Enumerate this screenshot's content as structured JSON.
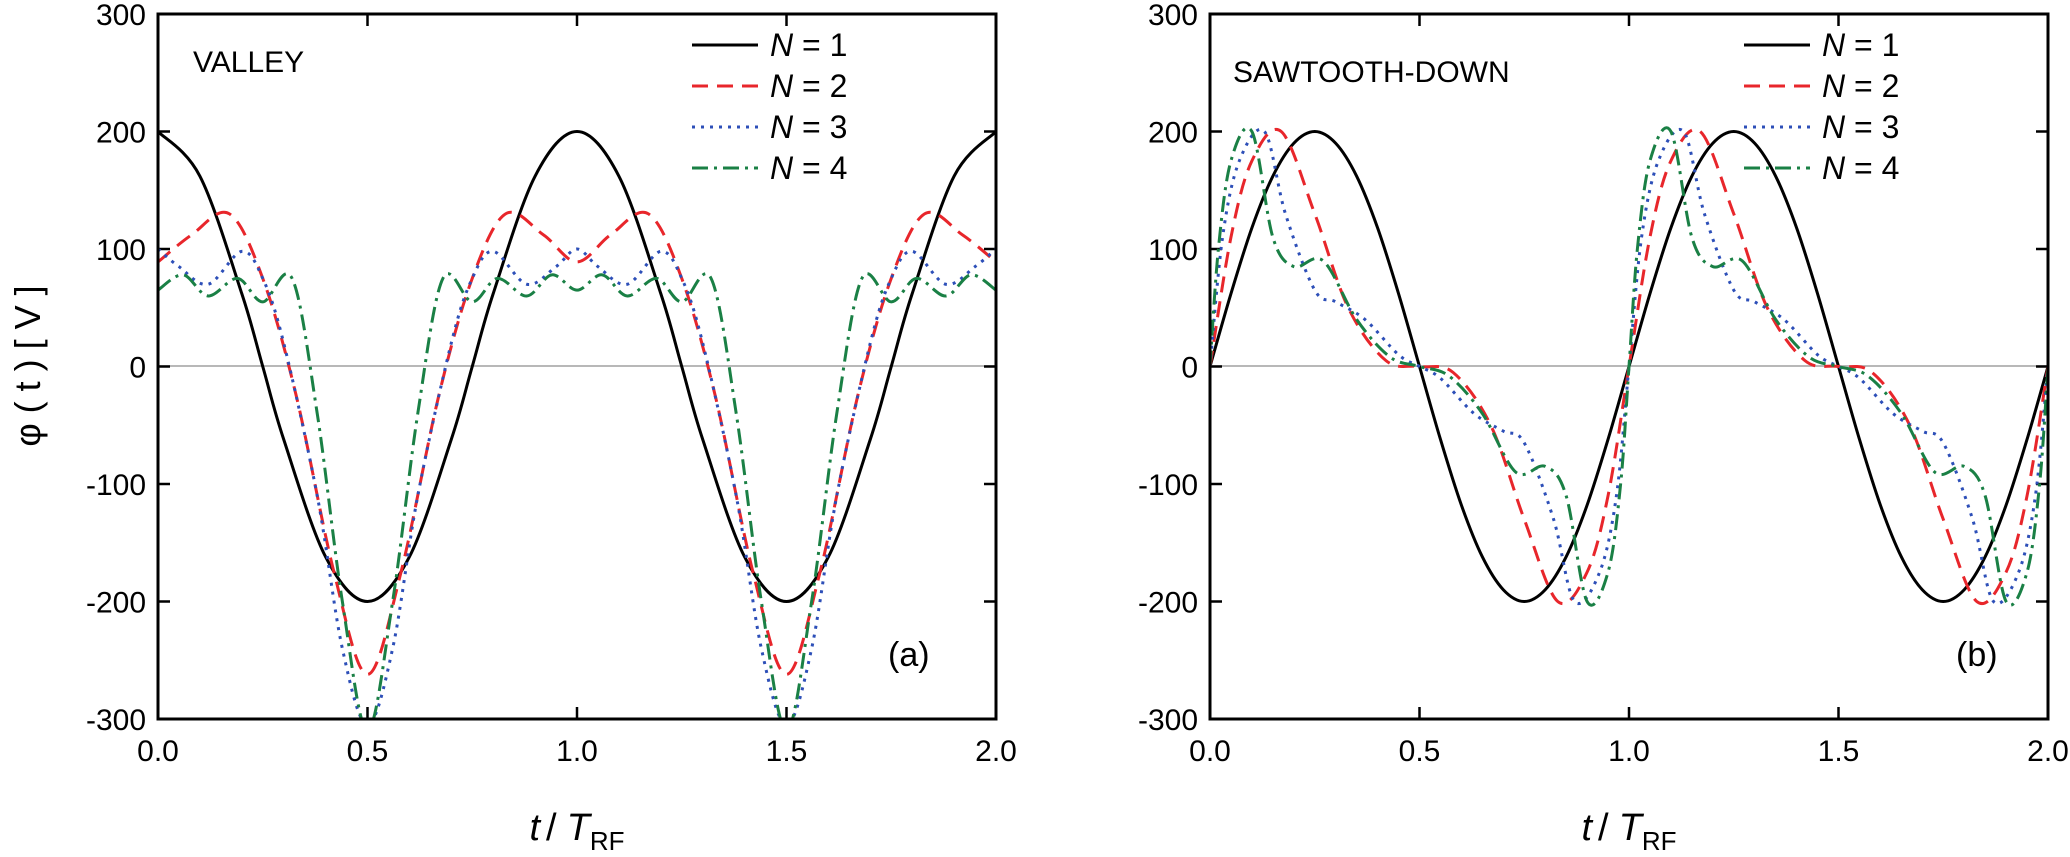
{
  "figure": {
    "ylabel": "φ ( t ) [ V ]",
    "xlabel_main": "t",
    "xlabel_sep": "/",
    "xlabel_T": "T",
    "xlabel_sub": "RF"
  },
  "legend": {
    "var": "N",
    "eq": " = "
  },
  "chart_data": [
    {
      "type": "line",
      "title": "VALLEY",
      "panel_label": "(a)",
      "xlim": [
        0,
        2
      ],
      "ylim": [
        -300,
        300
      ],
      "x_ticks": [
        "0.0",
        "0.5",
        "1.0",
        "1.5",
        "2.0"
      ],
      "y_ticks": [
        "-300",
        "-200",
        "-100",
        "0",
        "100",
        "200",
        "300"
      ],
      "grid": false,
      "zero_line": true,
      "legend_position": "top-right",
      "series": [
        {
          "name": "1",
          "N": 1,
          "color": "#000000",
          "dash": "solid",
          "x": [
            0.0,
            0.1,
            0.2,
            0.25,
            0.3,
            0.4,
            0.5,
            0.6,
            0.7,
            0.75,
            0.8,
            0.9,
            1.0,
            1.1,
            1.2,
            1.25,
            1.3,
            1.4,
            1.5,
            1.6,
            1.7,
            1.75,
            1.8,
            1.9,
            2.0
          ],
          "y": [
            200,
            162,
            62,
            0,
            -62,
            -162,
            -200,
            -162,
            -62,
            0,
            62,
            162,
            200,
            162,
            62,
            0,
            -62,
            -162,
            -200,
            -162,
            -62,
            0,
            62,
            162,
            200
          ]
        },
        {
          "name": "2",
          "N": 2,
          "color": "#e8262b",
          "dash": "dashed",
          "x": [
            0.0,
            0.08,
            0.17,
            0.25,
            0.33,
            0.42,
            0.5,
            0.58,
            0.67,
            0.75,
            0.83,
            0.92,
            1.0,
            1.08,
            1.17,
            1.25,
            1.33,
            1.42,
            1.5,
            1.58,
            1.67,
            1.75,
            1.83,
            1.92,
            2.0
          ],
          "y": [
            89,
            112,
            130,
            75,
            -25,
            -175,
            -262,
            -175,
            -25,
            75,
            130,
            112,
            89,
            112,
            130,
            75,
            -25,
            -175,
            -262,
            -175,
            -25,
            75,
            130,
            112,
            89
          ]
        },
        {
          "name": "3",
          "N": 3,
          "color": "#2d4fb8",
          "dash": "dotted",
          "x": [
            0.0,
            0.05,
            0.12,
            0.2,
            0.25,
            0.3,
            0.38,
            0.44,
            0.5,
            0.56,
            0.62,
            0.7,
            0.75,
            0.8,
            0.88,
            0.95,
            1.0,
            1.05,
            1.12,
            1.2,
            1.25,
            1.3,
            1.38,
            1.44,
            1.5,
            1.56,
            1.62,
            1.7,
            1.75,
            1.8,
            1.88,
            1.95,
            2.0
          ],
          "y": [
            100,
            85,
            70,
            98,
            75,
            20,
            -110,
            -240,
            -305,
            -240,
            -110,
            20,
            75,
            98,
            70,
            85,
            100,
            85,
            70,
            98,
            75,
            20,
            -110,
            -240,
            -305,
            -240,
            -110,
            20,
            75,
            98,
            70,
            85,
            100
          ]
        },
        {
          "name": "4",
          "N": 4,
          "color": "#1a8045",
          "dash": "dashdot",
          "x": [
            0.0,
            0.06,
            0.12,
            0.19,
            0.25,
            0.32,
            0.38,
            0.44,
            0.5,
            0.56,
            0.62,
            0.68,
            0.75,
            0.81,
            0.88,
            0.94,
            1.0,
            1.06,
            1.12,
            1.19,
            1.25,
            1.32,
            1.38,
            1.44,
            1.5,
            1.56,
            1.62,
            1.68,
            1.75,
            1.81,
            1.88,
            1.94,
            2.0
          ],
          "y": [
            65,
            78,
            60,
            75,
            55,
            75,
            -40,
            -200,
            -310,
            -200,
            -40,
            75,
            55,
            75,
            60,
            78,
            65,
            78,
            60,
            75,
            55,
            75,
            -40,
            -200,
            -310,
            -200,
            -40,
            75,
            55,
            75,
            60,
            78,
            65
          ]
        }
      ]
    },
    {
      "type": "line",
      "title": "SAWTOOTH-DOWN",
      "panel_label": "(b)",
      "xlim": [
        0,
        2
      ],
      "ylim": [
        -300,
        300
      ],
      "x_ticks": [
        "0.0",
        "0.5",
        "1.0",
        "1.5",
        "2.0"
      ],
      "y_ticks": [
        "-300",
        "-200",
        "-100",
        "0",
        "100",
        "200",
        "300"
      ],
      "grid": false,
      "zero_line": true,
      "legend_position": "top-right",
      "series": [
        {
          "name": "1",
          "N": 1,
          "color": "#000000",
          "dash": "solid",
          "x": [
            0.0,
            0.05,
            0.1,
            0.15,
            0.2,
            0.25,
            0.3,
            0.35,
            0.4,
            0.45,
            0.5,
            0.55,
            0.6,
            0.65,
            0.7,
            0.75,
            0.8,
            0.85,
            0.9,
            0.95,
            1.0,
            1.05,
            1.1,
            1.15,
            1.2,
            1.25,
            1.3,
            1.35,
            1.4,
            1.45,
            1.5,
            1.55,
            1.6,
            1.65,
            1.7,
            1.75,
            1.8,
            1.85,
            1.9,
            1.95,
            2.0
          ],
          "y": [
            0,
            62,
            118,
            162,
            190,
            200,
            190,
            162,
            118,
            62,
            0,
            -62,
            -118,
            -162,
            -190,
            -200,
            -190,
            -162,
            -118,
            -62,
            0,
            62,
            118,
            162,
            190,
            200,
            190,
            162,
            118,
            62,
            0,
            -62,
            -118,
            -162,
            -190,
            -200,
            -190,
            -162,
            -118,
            -62,
            0
          ]
        },
        {
          "name": "2",
          "N": 2,
          "color": "#e8262b",
          "dash": "dashed",
          "x": [
            0.0,
            0.05,
            0.1,
            0.17,
            0.25,
            0.33,
            0.42,
            0.5,
            0.58,
            0.67,
            0.75,
            0.83,
            0.9,
            0.95,
            1.0,
            1.05,
            1.1,
            1.17,
            1.25,
            1.33,
            1.42,
            1.5,
            1.58,
            1.67,
            1.75,
            1.83,
            1.9,
            1.95,
            2.0
          ],
          "y": [
            0,
            110,
            175,
            200,
            130,
            50,
            5,
            0,
            -5,
            -50,
            -130,
            -200,
            -175,
            -110,
            0,
            110,
            175,
            200,
            130,
            50,
            5,
            0,
            -5,
            -50,
            -130,
            -200,
            -175,
            -110,
            0
          ]
        },
        {
          "name": "3",
          "N": 3,
          "color": "#2d4fb8",
          "dash": "dotted",
          "x": [
            0.0,
            0.03,
            0.07,
            0.13,
            0.18,
            0.25,
            0.3,
            0.37,
            0.45,
            0.5,
            0.55,
            0.63,
            0.7,
            0.75,
            0.82,
            0.87,
            0.93,
            0.97,
            1.0,
            1.03,
            1.07,
            1.13,
            1.18,
            1.25,
            1.3,
            1.37,
            1.45,
            1.5,
            1.55,
            1.63,
            1.7,
            1.75,
            1.82,
            1.87,
            1.93,
            1.97,
            2.0
          ],
          "y": [
            0,
            110,
            175,
            200,
            130,
            65,
            55,
            40,
            10,
            0,
            -10,
            -40,
            -55,
            -65,
            -130,
            -200,
            -175,
            -110,
            0,
            110,
            175,
            200,
            130,
            65,
            55,
            40,
            10,
            0,
            -10,
            -40,
            -55,
            -65,
            -130,
            -200,
            -175,
            -110,
            0
          ]
        },
        {
          "name": "4",
          "N": 4,
          "color": "#1a8045",
          "dash": "dashdot",
          "x": [
            0.0,
            0.02,
            0.05,
            0.1,
            0.15,
            0.2,
            0.27,
            0.35,
            0.43,
            0.5,
            0.57,
            0.65,
            0.73,
            0.8,
            0.85,
            0.9,
            0.95,
            0.98,
            1.0,
            1.02,
            1.05,
            1.1,
            1.15,
            1.2,
            1.27,
            1.35,
            1.43,
            1.5,
            1.57,
            1.65,
            1.73,
            1.8,
            1.85,
            1.9,
            1.95,
            1.98,
            2.0
          ],
          "y": [
            0,
            100,
            175,
            200,
            110,
            85,
            90,
            40,
            8,
            0,
            -8,
            -40,
            -90,
            -85,
            -110,
            -200,
            -175,
            -100,
            0,
            100,
            175,
            200,
            110,
            85,
            90,
            40,
            8,
            0,
            -8,
            -40,
            -90,
            -85,
            -110,
            -200,
            -175,
            -100,
            0
          ]
        }
      ]
    }
  ]
}
